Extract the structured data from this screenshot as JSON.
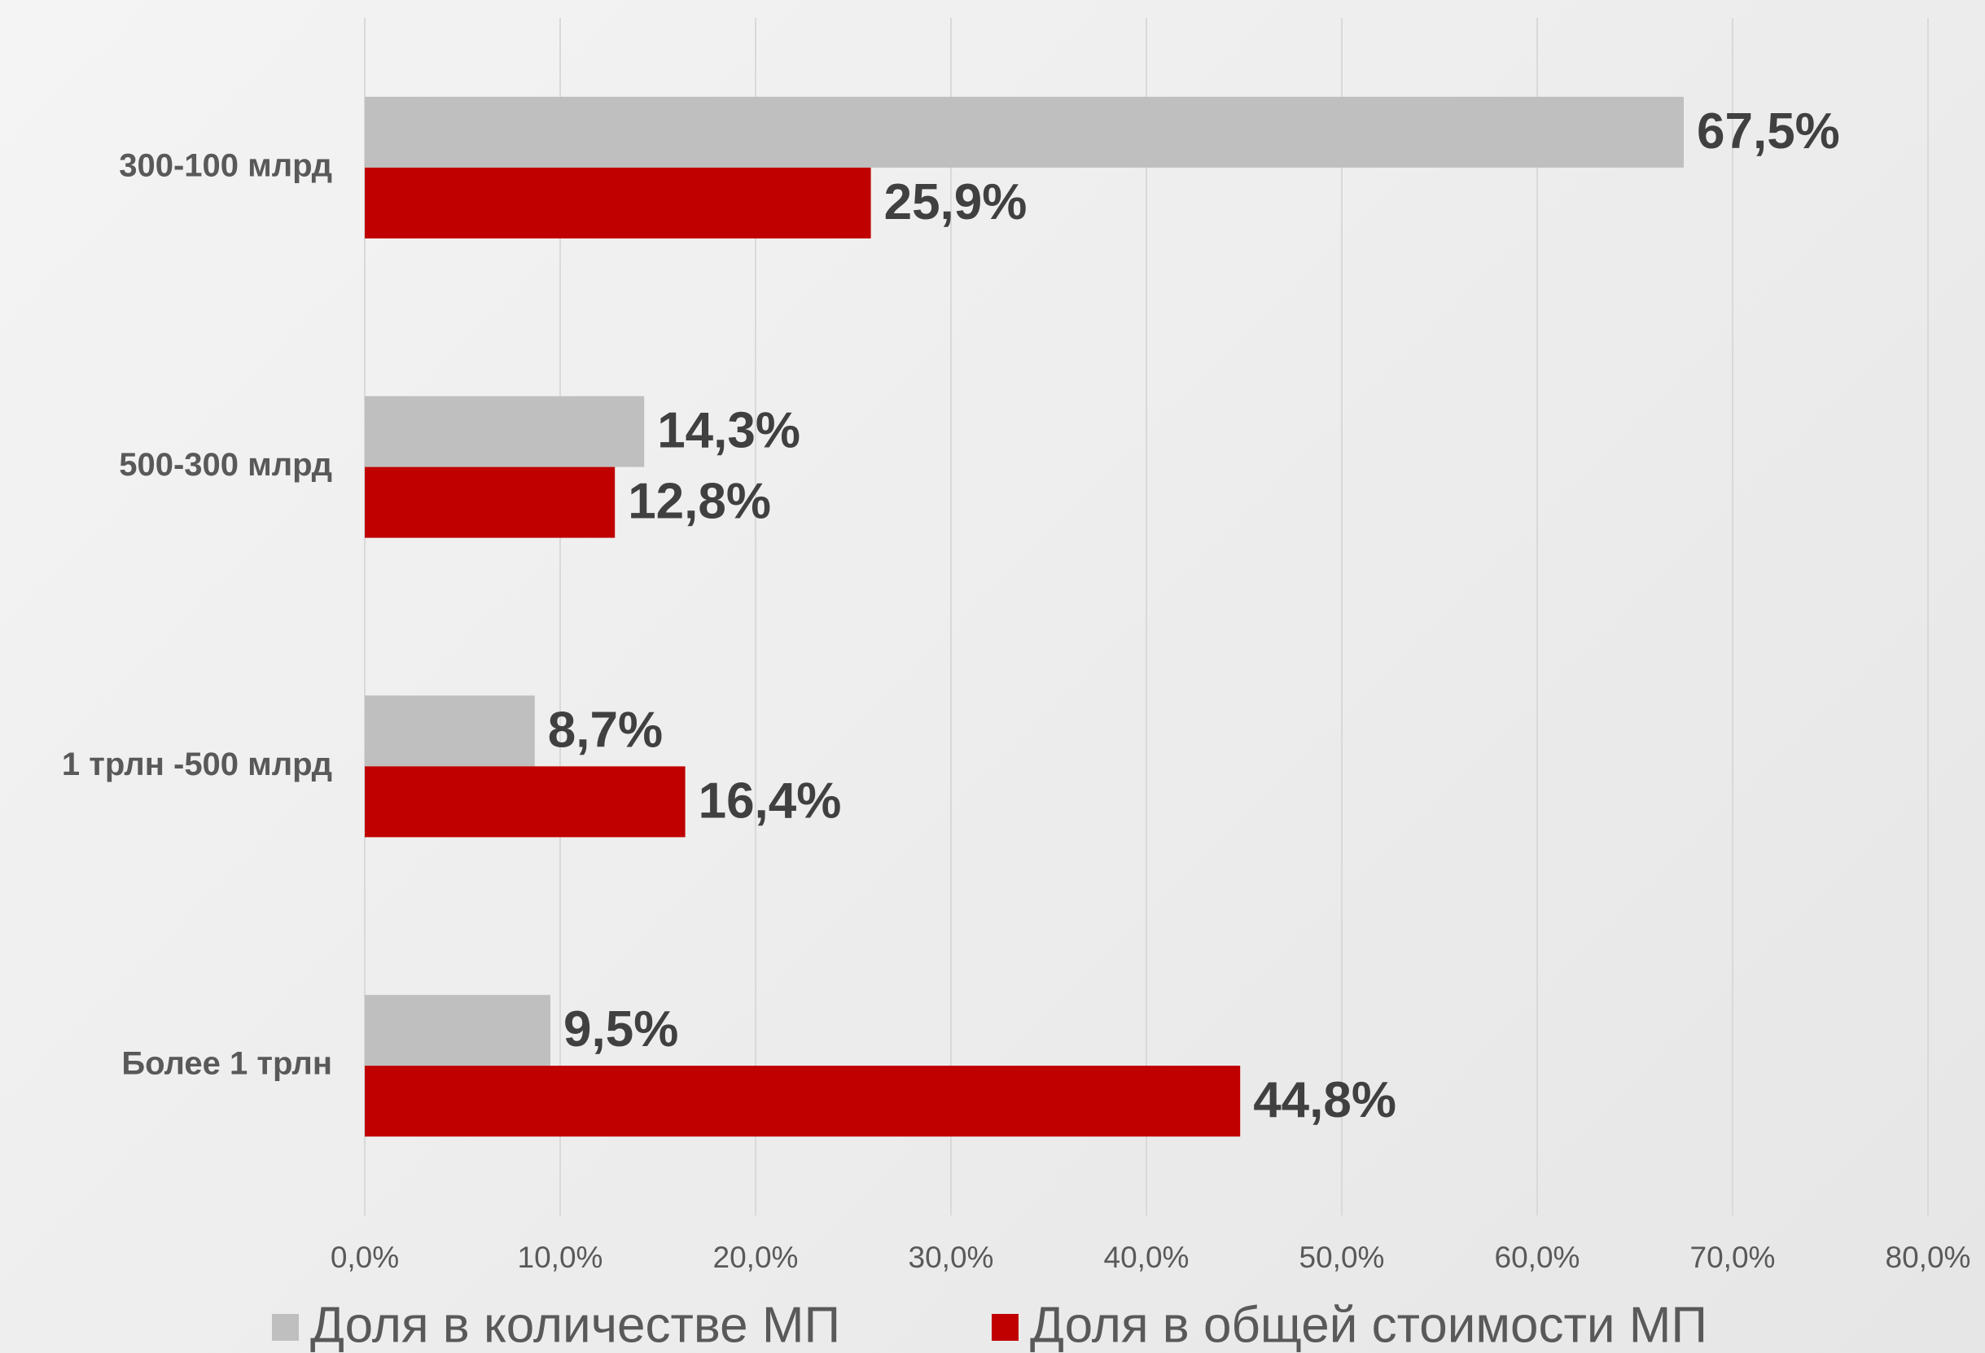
{
  "chart_data": {
    "type": "hbar",
    "categories": [
      "300-100 млрд",
      "500-300 млрд",
      "1 трлн -500 млрд",
      "Более 1 трлн"
    ],
    "series": [
      {
        "name": "Доля в количестве МП",
        "color": "#bfbfbf",
        "values": [
          67.5,
          14.3,
          8.7,
          9.5
        ],
        "value_labels": [
          "67,5%",
          "14,3%",
          "8,7%",
          "9,5%"
        ]
      },
      {
        "name": "Доля в общей стоимости МП",
        "color": "#c00000",
        "values": [
          25.9,
          12.8,
          16.4,
          44.8
        ],
        "value_labels": [
          "25,9%",
          "12,8%",
          "16,4%",
          "44,8%"
        ]
      }
    ],
    "xlim": [
      0,
      80
    ],
    "xticks": [
      {
        "value": 0,
        "label": "0,0%"
      },
      {
        "value": 10,
        "label": "10,0%"
      },
      {
        "value": 20,
        "label": "20,0%"
      },
      {
        "value": 30,
        "label": "30,0%"
      },
      {
        "value": 40,
        "label": "40,0%"
      },
      {
        "value": 50,
        "label": "50,0%"
      },
      {
        "value": 60,
        "label": "60,0%"
      },
      {
        "value": 70,
        "label": "70,0%"
      },
      {
        "value": 80,
        "label": "80,0%"
      }
    ],
    "grid": true,
    "legend": "bottom"
  }
}
